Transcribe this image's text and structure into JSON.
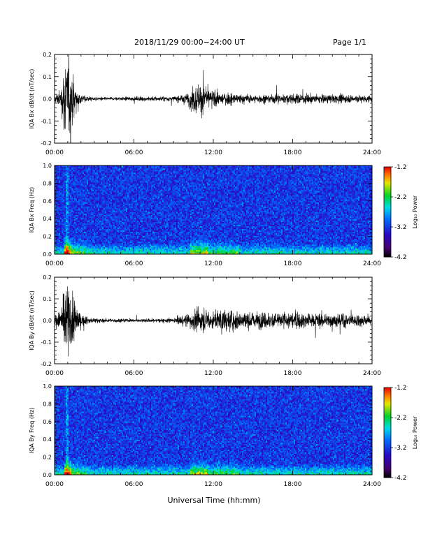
{
  "header": {
    "date_range": "2018/11/29  00:00−24:00 UT",
    "page": "Page 1/1"
  },
  "x_axis_title": "Universal Time (hh:mm)",
  "colorbar": {
    "label": "Log₁₀ Power",
    "ticks": [
      "-1.2",
      "-2.2",
      "-3.2",
      "-4.2"
    ]
  },
  "chart_data": [
    {
      "id": "bx-waveform",
      "type": "line",
      "ylabel": "IQA Bx dB/dt (nT/sec)",
      "xlim": [
        0,
        24
      ],
      "ylim": [
        -0.2,
        0.2
      ],
      "yticks": [
        "0.2",
        "0.1",
        "0.0",
        "-0.1",
        "-0.2"
      ],
      "xticks": [
        "00:00",
        "06:00",
        "12:00",
        "18:00",
        "24:00"
      ],
      "envelope": {
        "x_hours": [
          0,
          0.5,
          0.8,
          1.0,
          1.3,
          1.6,
          2.0,
          2.5,
          4,
          6,
          7,
          9,
          10,
          10.5,
          11,
          11.5,
          12,
          12.5,
          13,
          14,
          15,
          17,
          19,
          21,
          23,
          24
        ],
        "amplitude": [
          0.03,
          0.06,
          0.25,
          0.25,
          0.2,
          0.08,
          0.03,
          0.015,
          0.01,
          0.012,
          0.015,
          0.015,
          0.03,
          0.09,
          0.1,
          0.07,
          0.05,
          0.035,
          0.04,
          0.03,
          0.025,
          0.03,
          0.03,
          0.025,
          0.025,
          0.02
        ]
      }
    },
    {
      "id": "bx-spectrogram",
      "type": "heatmap",
      "ylabel": "IQA Bx Freq (Hz)",
      "xlim": [
        0,
        24
      ],
      "ylim": [
        0,
        1.0
      ],
      "yticks": [
        "1.0",
        "0.8",
        "0.6",
        "0.4",
        "0.2",
        "0.0"
      ],
      "xticks": [
        "00:00",
        "06:00",
        "12:00",
        "18:00",
        "24:00"
      ],
      "zlim": [
        -4.2,
        -1.2
      ]
    },
    {
      "id": "by-waveform",
      "type": "line",
      "ylabel": "IQA By dB/dt (nT/sec)",
      "xlim": [
        0,
        24
      ],
      "ylim": [
        -0.2,
        0.2
      ],
      "yticks": [
        "0.2",
        "0.1",
        "0.0",
        "-0.1",
        "-0.2"
      ],
      "xticks": [
        "00:00",
        "06:00",
        "12:00",
        "18:00",
        "24:00"
      ],
      "envelope": {
        "x_hours": [
          0,
          0.5,
          0.8,
          1.0,
          1.3,
          1.6,
          2.0,
          2.5,
          4,
          6,
          7,
          9,
          10,
          10.5,
          11,
          11.5,
          12,
          12.5,
          13,
          14,
          15,
          17,
          19,
          21,
          23,
          24
        ],
        "amplitude": [
          0.04,
          0.08,
          0.25,
          0.25,
          0.2,
          0.1,
          0.04,
          0.02,
          0.012,
          0.01,
          0.012,
          0.015,
          0.04,
          0.07,
          0.08,
          0.06,
          0.06,
          0.06,
          0.07,
          0.06,
          0.05,
          0.055,
          0.05,
          0.04,
          0.04,
          0.03
        ]
      }
    },
    {
      "id": "by-spectrogram",
      "type": "heatmap",
      "ylabel": "IQA By Freq (Hz)",
      "xlim": [
        0,
        24
      ],
      "ylim": [
        0,
        1.0
      ],
      "yticks": [
        "1.0",
        "0.8",
        "0.6",
        "0.4",
        "0.2",
        "0.0"
      ],
      "xticks": [
        "00:00",
        "06:00",
        "12:00",
        "18:00",
        "24:00"
      ],
      "zlim": [
        -4.2,
        -1.2
      ]
    }
  ]
}
